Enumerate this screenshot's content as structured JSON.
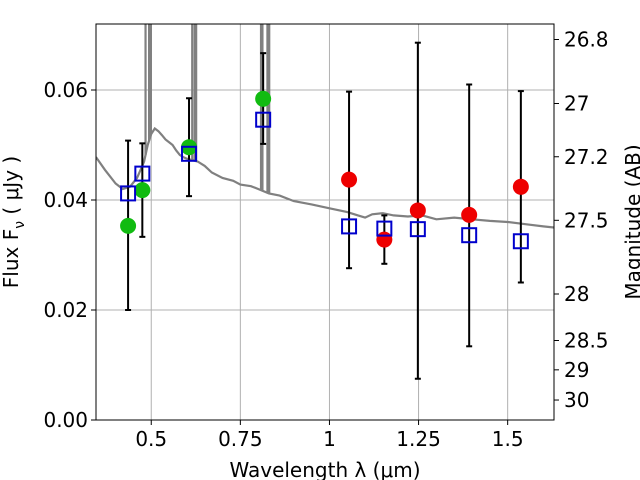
{
  "chart_data": {
    "type": "scatter",
    "xlabel": "Wavelength  λ (μm)",
    "ylabel": "Flux  F",
    "ylabel_sub": "ν",
    "ylabel_unit": "  ( μJy )",
    "y2label": "Magnitude (AB)",
    "xlim": [
      0.345,
      1.63
    ],
    "ylim": [
      0.0,
      0.072
    ],
    "grid": true,
    "x_ticks": [
      {
        "value": 0.5,
        "label": "0.5"
      },
      {
        "value": 0.75,
        "label": "0.75"
      },
      {
        "value": 1.0,
        "label": "1"
      },
      {
        "value": 1.25,
        "label": "1.25"
      },
      {
        "value": 1.5,
        "label": "1.5"
      }
    ],
    "y_ticks": [
      {
        "value": 0.0,
        "label": "0.00"
      },
      {
        "value": 0.02,
        "label": "0.02"
      },
      {
        "value": 0.04,
        "label": "0.04"
      },
      {
        "value": 0.06,
        "label": "0.06"
      }
    ],
    "y2_ticks": [
      {
        "value": 26.8,
        "label": "26.8"
      },
      {
        "value": 27.0,
        "label": "27"
      },
      {
        "value": 27.2,
        "label": "27.2"
      },
      {
        "value": 27.5,
        "label": "27.5"
      },
      {
        "value": 28.0,
        "label": "28"
      },
      {
        "value": 28.5,
        "label": "28.5"
      },
      {
        "value": 29.0,
        "label": "29"
      },
      {
        "value": 30.0,
        "label": "30"
      }
    ],
    "colors": {
      "green": "#11bb11",
      "red": "#ee0000",
      "model_square": "#0000cc",
      "spectrum": "#808080",
      "errorbar": "#000000",
      "grid": "#b0b0b0"
    },
    "series": [
      {
        "marker": "circle",
        "color": "green",
        "points": [
          {
            "x": 0.435,
            "y": 0.0353,
            "ylo": 0.02,
            "yhi": 0.0508
          },
          {
            "x": 0.475,
            "y": 0.0418,
            "ylo": 0.0333,
            "yhi": 0.0503
          },
          {
            "x": 0.606,
            "y": 0.0496,
            "ylo": 0.0407,
            "yhi": 0.0585
          },
          {
            "x": 0.814,
            "y": 0.0584,
            "ylo": 0.0502,
            "yhi": 0.0667
          }
        ]
      },
      {
        "marker": "circle",
        "color": "red",
        "points": [
          {
            "x": 1.055,
            "y": 0.0437,
            "ylo": 0.0276,
            "yhi": 0.0597
          },
          {
            "x": 1.154,
            "y": 0.0328,
            "ylo": 0.0284,
            "yhi": 0.0372
          },
          {
            "x": 1.248,
            "y": 0.0381,
            "ylo": 0.0075,
            "yhi": 0.0686
          },
          {
            "x": 1.392,
            "y": 0.0373,
            "ylo": 0.0134,
            "yhi": 0.061
          },
          {
            "x": 1.537,
            "y": 0.0424,
            "ylo": 0.025,
            "yhi": 0.0598
          }
        ]
      },
      {
        "marker": "square-open",
        "color": "model_square",
        "points": [
          {
            "x": 0.435,
            "y": 0.0412
          },
          {
            "x": 0.475,
            "y": 0.0448
          },
          {
            "x": 0.606,
            "y": 0.0484
          },
          {
            "x": 0.814,
            "y": 0.0546
          },
          {
            "x": 1.055,
            "y": 0.0352
          },
          {
            "x": 1.154,
            "y": 0.0348
          },
          {
            "x": 1.248,
            "y": 0.0347
          },
          {
            "x": 1.392,
            "y": 0.0336
          },
          {
            "x": 1.537,
            "y": 0.0325
          }
        ]
      }
    ],
    "spectrum": [
      [
        0.345,
        0.0478
      ],
      [
        0.37,
        0.0455
      ],
      [
        0.4,
        0.043
      ],
      [
        0.42,
        0.042
      ],
      [
        0.44,
        0.0424
      ],
      [
        0.46,
        0.044
      ],
      [
        0.47,
        0.0455
      ],
      [
        0.48,
        0.047
      ],
      [
        0.49,
        0.05
      ],
      [
        0.5,
        0.052
      ],
      [
        0.51,
        0.053
      ],
      [
        0.52,
        0.0525
      ],
      [
        0.53,
        0.0518
      ],
      [
        0.54,
        0.051
      ],
      [
        0.55,
        0.0505
      ],
      [
        0.56,
        0.05
      ],
      [
        0.57,
        0.049
      ],
      [
        0.58,
        0.0482
      ],
      [
        0.59,
        0.0478
      ],
      [
        0.6,
        0.0475
      ],
      [
        0.63,
        0.047
      ],
      [
        0.65,
        0.0462
      ],
      [
        0.67,
        0.045
      ],
      [
        0.7,
        0.044
      ],
      [
        0.73,
        0.0435
      ],
      [
        0.75,
        0.0428
      ],
      [
        0.78,
        0.0425
      ],
      [
        0.8,
        0.042
      ],
      [
        0.83,
        0.0412
      ],
      [
        0.86,
        0.0408
      ],
      [
        0.9,
        0.0398
      ],
      [
        0.95,
        0.0392
      ],
      [
        1.0,
        0.0385
      ],
      [
        1.05,
        0.0378
      ],
      [
        1.08,
        0.0372
      ],
      [
        1.1,
        0.0368
      ],
      [
        1.12,
        0.0374
      ],
      [
        1.15,
        0.0376
      ],
      [
        1.18,
        0.0372
      ],
      [
        1.22,
        0.037
      ],
      [
        1.26,
        0.0372
      ],
      [
        1.3,
        0.0365
      ],
      [
        1.35,
        0.0368
      ],
      [
        1.4,
        0.0365
      ],
      [
        1.45,
        0.0362
      ],
      [
        1.5,
        0.036
      ],
      [
        1.55,
        0.0356
      ],
      [
        1.6,
        0.0352
      ],
      [
        1.63,
        0.035
      ]
    ],
    "emission_lines": [
      {
        "x": 0.484,
        "y": 0.08
      },
      {
        "x": 0.494,
        "y": 0.08
      },
      {
        "x": 0.499,
        "y": 0.08
      },
      {
        "x": 0.615,
        "y": 0.08
      },
      {
        "x": 0.622,
        "y": 0.08
      },
      {
        "x": 0.626,
        "y": 0.08
      },
      {
        "x": 0.808,
        "y": 0.08
      },
      {
        "x": 0.812,
        "y": 0.08
      },
      {
        "x": 0.826,
        "y": 0.08
      },
      {
        "x": 0.831,
        "y": 0.08
      }
    ]
  }
}
